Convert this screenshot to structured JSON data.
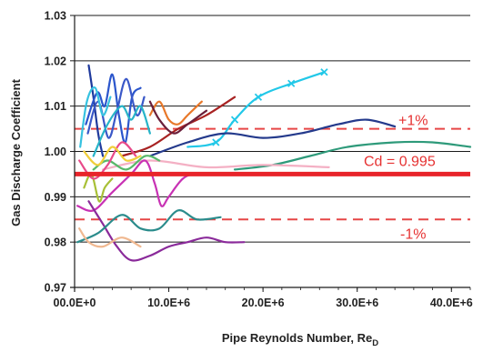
{
  "chart_data": {
    "type": "line",
    "title": "",
    "xlabel": "Pipe Reynolds Number, Re",
    "xlabel_sub": "D",
    "ylabel": "Gas Discharge Coefficient",
    "xlim": [
      0,
      42000000
    ],
    "ylim": [
      0.97,
      1.03
    ],
    "grid": "horizontal",
    "legend": "none",
    "x_tick_labels": [
      "00.0E+0",
      "10.0E+6",
      "20.0E+6",
      "30.0E+6",
      "40.0E+6"
    ],
    "x_tick_values": [
      0,
      10000000,
      20000000,
      30000000,
      40000000
    ],
    "y_tick_labels": [
      "0.97",
      "0.98",
      "0.99",
      "1.00",
      "1.01",
      "1.02",
      "1.03"
    ],
    "y_tick_values": [
      0.97,
      0.98,
      0.99,
      1.0,
      1.01,
      1.02,
      1.03
    ],
    "reference_lines": [
      {
        "label": "Cd = 0.995",
        "y": 0.995,
        "color": "#e8242a",
        "style": "solid"
      },
      {
        "label": "+1%",
        "y": 1.005,
        "color": "#e64646",
        "style": "dashed"
      },
      {
        "label": "-1%",
        "y": 0.985,
        "color": "#e64646",
        "style": "dashed"
      }
    ],
    "series": [
      {
        "color": "#1f3a9c",
        "marker": "",
        "points": [
          [
            1500000,
            1.019
          ],
          [
            2000000,
            1.012
          ],
          [
            2500000,
            1.004
          ],
          [
            3000000,
            0.999
          ]
        ]
      },
      {
        "color": "#2b56cc",
        "marker": "",
        "points": [
          [
            1200000,
            1.006
          ],
          [
            2400000,
            1.013
          ],
          [
            3200000,
            1.01
          ],
          [
            4000000,
            1.017
          ],
          [
            4700000,
            1.008
          ],
          [
            5400000,
            1.002
          ],
          [
            6100000,
            1.012
          ],
          [
            7000000,
            1.014
          ]
        ]
      },
      {
        "color": "#3a58c8",
        "marker": "",
        "points": [
          [
            1400000,
            1.004
          ],
          [
            2500000,
            1.011
          ],
          [
            3600000,
            1.003
          ],
          [
            4500000,
            1.009
          ],
          [
            5500000,
            1.016
          ],
          [
            6600000,
            1.008
          ],
          [
            7400000,
            1.012
          ]
        ]
      },
      {
        "color": "#36c2e0",
        "marker": "",
        "points": [
          [
            600000,
            1.001
          ],
          [
            1300000,
            1.011
          ],
          [
            2200000,
            1.014
          ],
          [
            3000000,
            1.008
          ],
          [
            3800000,
            1.012
          ]
        ]
      },
      {
        "color": "#28b4c8",
        "marker": "",
        "points": [
          [
            2000000,
            0.999
          ],
          [
            3500000,
            1.006
          ],
          [
            5000000,
            1.01
          ],
          [
            6000000,
            1.007
          ],
          [
            7000000,
            1.01
          ],
          [
            8000000,
            1.004
          ]
        ]
      },
      {
        "color": "#e8782a",
        "marker": "",
        "points": [
          [
            8000000,
            1.008
          ],
          [
            9000000,
            1.011
          ],
          [
            10000000,
            1.007
          ],
          [
            11000000,
            1.006
          ],
          [
            12000000,
            1.008
          ],
          [
            13500000,
            1.011
          ]
        ]
      },
      {
        "color": "#a82222",
        "marker": "",
        "points": [
          [
            5000000,
            0.999
          ],
          [
            8000000,
            1.001
          ],
          [
            11000000,
            1.005
          ],
          [
            14000000,
            1.008
          ],
          [
            17000000,
            1.012
          ]
        ]
      },
      {
        "color": "#6a1f3a",
        "marker": "",
        "points": [
          [
            8000000,
            1.011
          ],
          [
            9000000,
            1.007
          ],
          [
            10500000,
            1.004
          ],
          [
            12000000,
            1.006
          ],
          [
            14000000,
            1.009
          ]
        ]
      },
      {
        "color": "#22c8e8",
        "marker": "x",
        "points": [
          [
            12000000,
            1.001
          ],
          [
            15000000,
            1.002
          ],
          [
            17000000,
            1.007
          ],
          [
            19500000,
            1.012
          ],
          [
            23000000,
            1.015
          ],
          [
            26500000,
            1.0175
          ]
        ]
      },
      {
        "color": "#243a8c",
        "marker": "",
        "points": [
          [
            8000000,
            0.999
          ],
          [
            12000000,
            1.002
          ],
          [
            16000000,
            1.004
          ],
          [
            20000000,
            1.003
          ],
          [
            24000000,
            1.004
          ],
          [
            28000000,
            1.006
          ],
          [
            31000000,
            1.007
          ],
          [
            34000000,
            1.0055
          ]
        ]
      },
      {
        "color": "#2e9a7a",
        "marker": "",
        "points": [
          [
            17000000,
            0.996
          ],
          [
            21000000,
            0.997
          ],
          [
            25000000,
            0.999
          ],
          [
            29000000,
            1.001
          ],
          [
            34000000,
            1.002
          ],
          [
            38000000,
            1.002
          ],
          [
            42000000,
            1.001
          ]
        ]
      },
      {
        "color": "#f4b0c4",
        "marker": "",
        "points": [
          [
            3000000,
            0.996
          ],
          [
            8000000,
            0.998
          ],
          [
            14000000,
            0.9965
          ],
          [
            20000000,
            0.997
          ],
          [
            27000000,
            0.9965
          ]
        ]
      },
      {
        "color": "#c832b4",
        "marker": "",
        "points": [
          [
            300000,
            0.988
          ],
          [
            2000000,
            0.987
          ],
          [
            4000000,
            0.991
          ],
          [
            6000000,
            0.995
          ],
          [
            7500000,
            0.998
          ],
          [
            8500000,
            0.993
          ],
          [
            9200000,
            0.988
          ],
          [
            10000000,
            0.99
          ],
          [
            11500000,
            0.994
          ],
          [
            13000000,
            0.995
          ],
          [
            16000000,
            0.995
          ]
        ]
      },
      {
        "color": "#8a2a9a",
        "marker": "",
        "points": [
          [
            1500000,
            0.989
          ],
          [
            3000000,
            0.984
          ],
          [
            4500000,
            0.979
          ],
          [
            6000000,
            0.976
          ],
          [
            8000000,
            0.977
          ],
          [
            10000000,
            0.979
          ],
          [
            12000000,
            0.98
          ],
          [
            14000000,
            0.981
          ],
          [
            16000000,
            0.98
          ],
          [
            18000000,
            0.98
          ]
        ]
      },
      {
        "color": "#2b8c8c",
        "marker": "",
        "points": [
          [
            300000,
            0.98
          ],
          [
            2500000,
            0.982
          ],
          [
            5000000,
            0.986
          ],
          [
            7000000,
            0.983
          ],
          [
            9000000,
            0.983
          ],
          [
            11000000,
            0.987
          ],
          [
            13000000,
            0.985
          ],
          [
            15500000,
            0.9855
          ]
        ]
      },
      {
        "color": "#f0b890",
        "marker": "",
        "points": [
          [
            500000,
            0.983
          ],
          [
            1500000,
            0.98
          ],
          [
            3000000,
            0.979
          ],
          [
            5000000,
            0.981
          ],
          [
            7000000,
            0.979
          ]
        ]
      },
      {
        "color": "#a8c036",
        "marker": "",
        "points": [
          [
            1000000,
            0.992
          ],
          [
            1800000,
            0.995
          ],
          [
            2600000,
            0.989
          ],
          [
            3200000,
            0.992
          ],
          [
            4000000,
            0.994
          ]
        ]
      },
      {
        "color": "#58b86a",
        "marker": "",
        "points": [
          [
            2000000,
            0.996
          ],
          [
            3500000,
            0.998
          ],
          [
            5500000,
            0.996
          ],
          [
            7500000,
            0.999
          ],
          [
            9000000,
            0.998
          ]
        ]
      },
      {
        "color": "#e84a8a",
        "marker": "",
        "points": [
          [
            500000,
            0.998
          ],
          [
            2000000,
            0.994
          ],
          [
            3500000,
            0.997
          ],
          [
            5000000,
            1.002
          ],
          [
            6500000,
            0.999
          ]
        ]
      },
      {
        "color": "#f0ce3a",
        "marker": "",
        "points": [
          [
            1000000,
            1.0
          ],
          [
            2500000,
            0.997
          ],
          [
            4000000,
            1.001
          ],
          [
            5500000,
            0.998
          ],
          [
            7000000,
            0.999
          ]
        ]
      }
    ]
  }
}
